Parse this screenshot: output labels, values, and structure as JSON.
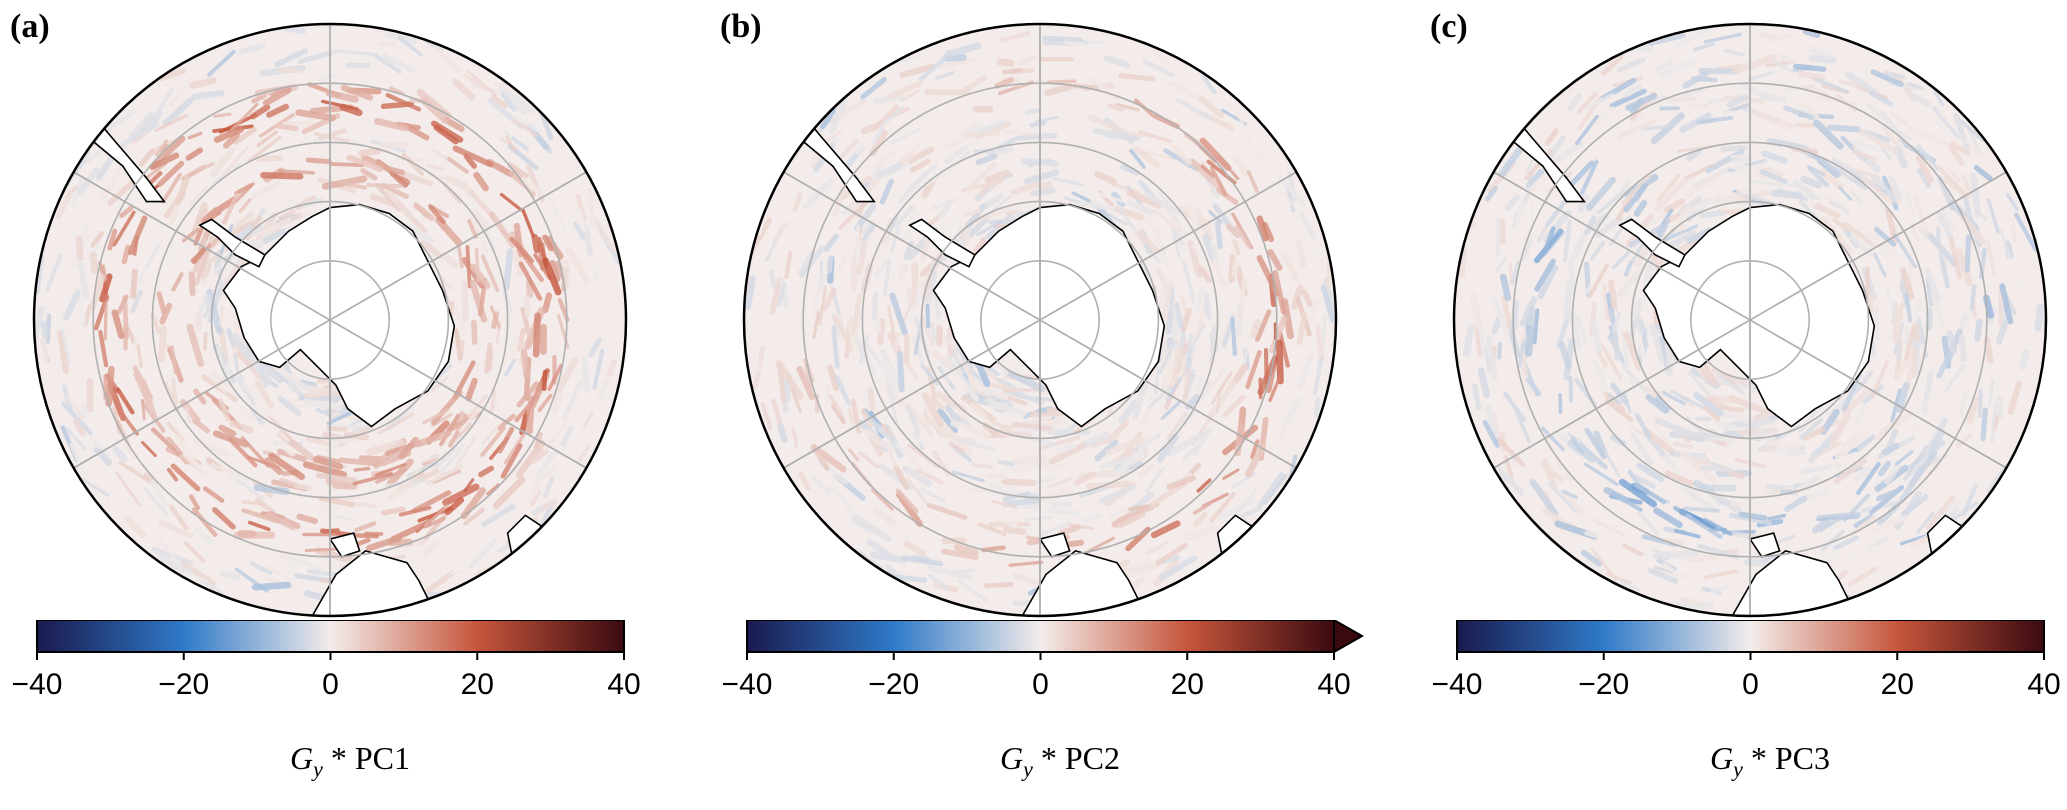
{
  "chart_data": [
    {
      "type": "heatmap",
      "panel_label": "(a)",
      "projection": "south polar stereographic",
      "colorbar": {
        "label_symbol": "G",
        "label_subscript": "y",
        "label_suffix": " * PC1",
        "ticks": [
          -40,
          -20,
          0,
          20,
          40
        ],
        "tick_labels": [
          "−40",
          "−20",
          "0",
          "20",
          "40"
        ],
        "range": [
          -40,
          40
        ],
        "extend": "neither",
        "colormap": "balance (blue-white-red)"
      },
      "pattern": "strong positive (red) band along Antarctic Circumpolar Current"
    },
    {
      "type": "heatmap",
      "panel_label": "(b)",
      "projection": "south polar stereographic",
      "colorbar": {
        "label_symbol": "G",
        "label_subscript": "y",
        "label_suffix": " * PC2",
        "ticks": [
          -40,
          -20,
          0,
          20,
          40
        ],
        "tick_labels": [
          "−40",
          "−20",
          "0",
          "20",
          "40"
        ],
        "range": [
          -40,
          40
        ],
        "extend": "max",
        "colormap": "balance (blue-white-red)"
      },
      "pattern": "positive band concentrated in Indian/Pacific sector, weaker elsewhere"
    },
    {
      "type": "heatmap",
      "panel_label": "(c)",
      "projection": "south polar stereographic",
      "colorbar": {
        "label_symbol": "G",
        "label_subscript": "y",
        "label_suffix": " * PC3",
        "ticks": [
          -40,
          -20,
          0,
          20,
          40
        ],
        "tick_labels": [
          "−40",
          "−20",
          "0",
          "20",
          "40"
        ],
        "range": [
          -40,
          40
        ],
        "extend": "neither",
        "colormap": "balance (blue-white-red)"
      },
      "pattern": "weak mixed signal, slight negative (blue) band in Pacific sector"
    }
  ],
  "colors": {
    "neg_max": "#1a1a4e",
    "neg_mid": "#2f7ac8",
    "zero": "#f3ecea",
    "pos_mid": "#c6563c",
    "pos_max": "#3b0a10",
    "grid": "#b0b0b0",
    "land": "#ffffff",
    "coast": "#000000"
  }
}
